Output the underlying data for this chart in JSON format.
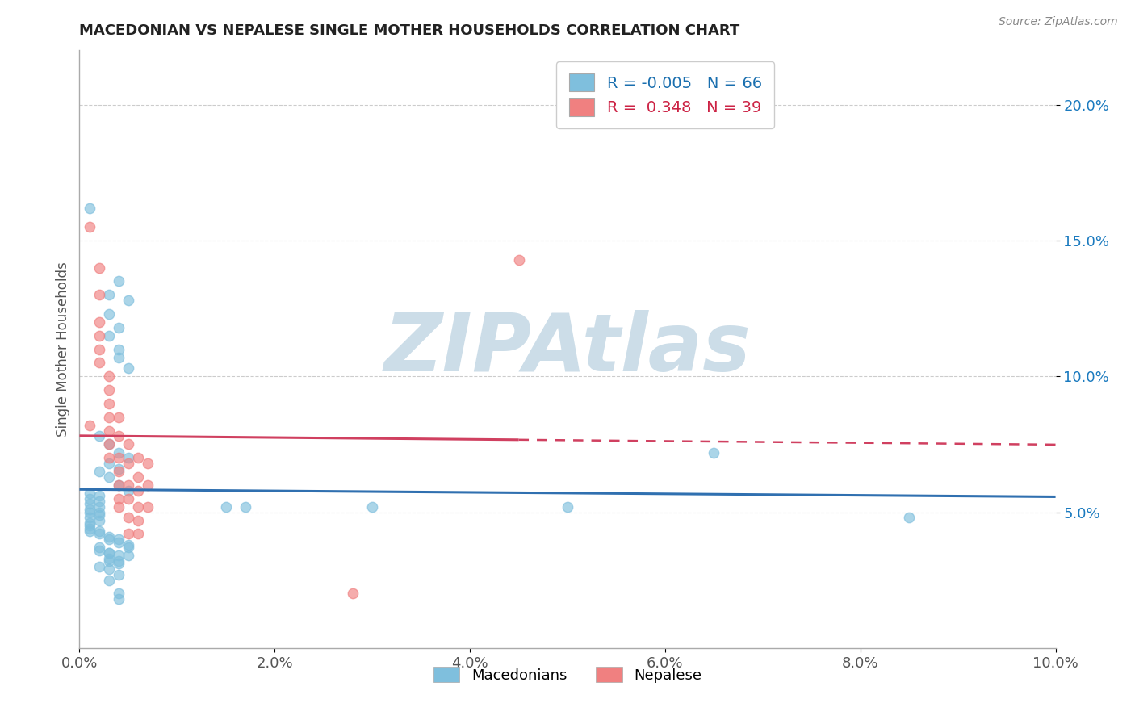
{
  "title": "MACEDONIAN VS NEPALESE SINGLE MOTHER HOUSEHOLDS CORRELATION CHART",
  "source": "Source: ZipAtlas.com",
  "ylabel": "Single Mother Households",
  "xlim": [
    0.0,
    0.1
  ],
  "ylim": [
    0.0,
    0.22
  ],
  "yticks": [
    0.05,
    0.1,
    0.15,
    0.2
  ],
  "ytick_labels": [
    "5.0%",
    "10.0%",
    "15.0%",
    "20.0%"
  ],
  "xticks": [
    0.0,
    0.02,
    0.04,
    0.06,
    0.08,
    0.1
  ],
  "xtick_labels": [
    "0.0%",
    "2.0%",
    "4.0%",
    "6.0%",
    "8.0%",
    "10.0%"
  ],
  "macedonian_color": "#7fbfdd",
  "nepalese_color": "#f08080",
  "macedonian_R": -0.005,
  "macedonian_N": 66,
  "nepalese_R": 0.348,
  "nepalese_N": 39,
  "watermark": "ZIPAtlas",
  "watermark_color": "#ccdde8",
  "background_color": "#ffffff",
  "grid_color": "#cccccc",
  "title_color": "#222222",
  "axis_label_color": "#555555",
  "legend_R_color_mac": "#1a6faf",
  "legend_R_color_nep": "#cc2244",
  "nep_line_solid_xmax": 0.045,
  "macedonian_scatter": [
    [
      0.001,
      0.162
    ],
    [
      0.004,
      0.135
    ],
    [
      0.003,
      0.13
    ],
    [
      0.005,
      0.128
    ],
    [
      0.003,
      0.123
    ],
    [
      0.004,
      0.118
    ],
    [
      0.003,
      0.115
    ],
    [
      0.004,
      0.11
    ],
    [
      0.004,
      0.107
    ],
    [
      0.005,
      0.103
    ],
    [
      0.002,
      0.078
    ],
    [
      0.003,
      0.075
    ],
    [
      0.004,
      0.072
    ],
    [
      0.005,
      0.07
    ],
    [
      0.003,
      0.068
    ],
    [
      0.004,
      0.066
    ],
    [
      0.002,
      0.065
    ],
    [
      0.003,
      0.063
    ],
    [
      0.004,
      0.06
    ],
    [
      0.005,
      0.058
    ],
    [
      0.001,
      0.057
    ],
    [
      0.002,
      0.056
    ],
    [
      0.001,
      0.055
    ],
    [
      0.002,
      0.054
    ],
    [
      0.001,
      0.053
    ],
    [
      0.002,
      0.052
    ],
    [
      0.001,
      0.051
    ],
    [
      0.002,
      0.05
    ],
    [
      0.001,
      0.05
    ],
    [
      0.002,
      0.049
    ],
    [
      0.001,
      0.048
    ],
    [
      0.002,
      0.047
    ],
    [
      0.001,
      0.046
    ],
    [
      0.001,
      0.045
    ],
    [
      0.001,
      0.044
    ],
    [
      0.001,
      0.043
    ],
    [
      0.002,
      0.043
    ],
    [
      0.002,
      0.042
    ],
    [
      0.003,
      0.041
    ],
    [
      0.003,
      0.04
    ],
    [
      0.004,
      0.04
    ],
    [
      0.004,
      0.039
    ],
    [
      0.005,
      0.038
    ],
    [
      0.005,
      0.037
    ],
    [
      0.002,
      0.037
    ],
    [
      0.002,
      0.036
    ],
    [
      0.003,
      0.035
    ],
    [
      0.003,
      0.035
    ],
    [
      0.004,
      0.034
    ],
    [
      0.005,
      0.034
    ],
    [
      0.003,
      0.033
    ],
    [
      0.003,
      0.032
    ],
    [
      0.004,
      0.032
    ],
    [
      0.004,
      0.031
    ],
    [
      0.002,
      0.03
    ],
    [
      0.003,
      0.029
    ],
    [
      0.004,
      0.027
    ],
    [
      0.003,
      0.025
    ],
    [
      0.004,
      0.02
    ],
    [
      0.004,
      0.018
    ],
    [
      0.015,
      0.052
    ],
    [
      0.017,
      0.052
    ],
    [
      0.03,
      0.052
    ],
    [
      0.05,
      0.052
    ],
    [
      0.065,
      0.072
    ],
    [
      0.085,
      0.048
    ]
  ],
  "nepalese_scatter": [
    [
      0.001,
      0.082
    ],
    [
      0.001,
      0.155
    ],
    [
      0.002,
      0.14
    ],
    [
      0.002,
      0.13
    ],
    [
      0.002,
      0.12
    ],
    [
      0.002,
      0.115
    ],
    [
      0.002,
      0.11
    ],
    [
      0.002,
      0.105
    ],
    [
      0.003,
      0.1
    ],
    [
      0.003,
      0.095
    ],
    [
      0.003,
      0.09
    ],
    [
      0.003,
      0.085
    ],
    [
      0.003,
      0.08
    ],
    [
      0.003,
      0.075
    ],
    [
      0.003,
      0.07
    ],
    [
      0.004,
      0.085
    ],
    [
      0.004,
      0.078
    ],
    [
      0.004,
      0.07
    ],
    [
      0.004,
      0.065
    ],
    [
      0.004,
      0.06
    ],
    [
      0.004,
      0.055
    ],
    [
      0.004,
      0.052
    ],
    [
      0.005,
      0.075
    ],
    [
      0.005,
      0.068
    ],
    [
      0.005,
      0.06
    ],
    [
      0.005,
      0.055
    ],
    [
      0.005,
      0.048
    ],
    [
      0.005,
      0.042
    ],
    [
      0.006,
      0.07
    ],
    [
      0.006,
      0.063
    ],
    [
      0.006,
      0.058
    ],
    [
      0.006,
      0.052
    ],
    [
      0.006,
      0.047
    ],
    [
      0.006,
      0.042
    ],
    [
      0.007,
      0.068
    ],
    [
      0.007,
      0.06
    ],
    [
      0.007,
      0.052
    ],
    [
      0.045,
      0.143
    ],
    [
      0.028,
      0.02
    ]
  ]
}
